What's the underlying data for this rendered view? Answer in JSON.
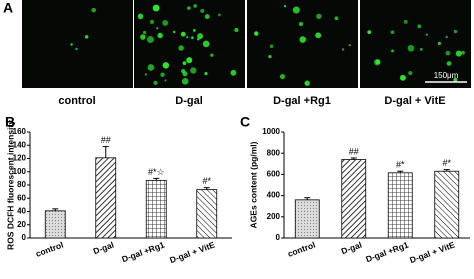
{
  "panel_a": {
    "label": "A",
    "captions": [
      "control",
      "D-gal",
      "D-gal +Rg1",
      "D-gal + VitE"
    ],
    "scale_bar": "150μm"
  },
  "chart_data": [
    {
      "type": "bar",
      "panel": "B",
      "y_label": "ROS DCFH fluorescent intensity",
      "categories": [
        "control",
        "D-gal",
        "D-gal +Rg1",
        "D-gal + VitE"
      ],
      "values": [
        41,
        121,
        87,
        73
      ],
      "errors": [
        3,
        17,
        3,
        3
      ],
      "annotations": [
        null,
        "##",
        "#*☆",
        "#*"
      ],
      "ylim": [
        0,
        160
      ],
      "yticks": [
        0,
        20,
        40,
        60,
        80,
        100,
        120,
        140,
        160
      ]
    },
    {
      "type": "bar",
      "panel": "C",
      "y_label": "AGEs content (pg/ml)",
      "categories": [
        "control",
        "D-gal",
        "D-gal +Rg1",
        "D-gal + VitE"
      ],
      "values": [
        360,
        740,
        615,
        630
      ],
      "errors": [
        20,
        15,
        15,
        15
      ],
      "annotations": [
        null,
        "##",
        "#*",
        "#*"
      ],
      "ylim": [
        0,
        1000
      ],
      "yticks": [
        0,
        200,
        400,
        600,
        800,
        1000
      ]
    }
  ]
}
